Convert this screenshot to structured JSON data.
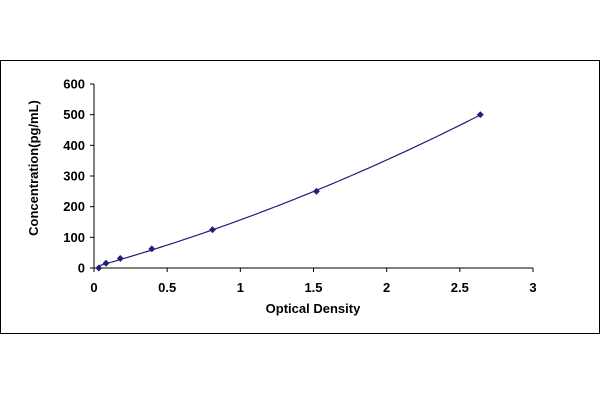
{
  "chart_data": {
    "type": "scatter",
    "title": "",
    "xlabel": "Optical Density",
    "ylabel": "Concentration(pg/mL)",
    "xlim": [
      0,
      3
    ],
    "ylim": [
      0,
      600
    ],
    "xticks": [
      "0",
      "0.5",
      "1",
      "1.5",
      "2",
      "2.5",
      "3"
    ],
    "yticks": [
      "0",
      "100",
      "200",
      "300",
      "400",
      "500",
      "600"
    ],
    "grid": false,
    "legend": "none",
    "trendline": true,
    "colors": {
      "point": "#1f1f7a",
      "line": "#1f1f7a",
      "axis": "#000000",
      "frame": "#000000"
    },
    "series": [
      {
        "x": [
          0.033,
          0.082,
          0.18,
          0.395,
          0.81,
          1.52,
          2.64
        ],
        "y": [
          0,
          15.6,
          31.2,
          62.5,
          125,
          250,
          500
        ]
      }
    ]
  }
}
